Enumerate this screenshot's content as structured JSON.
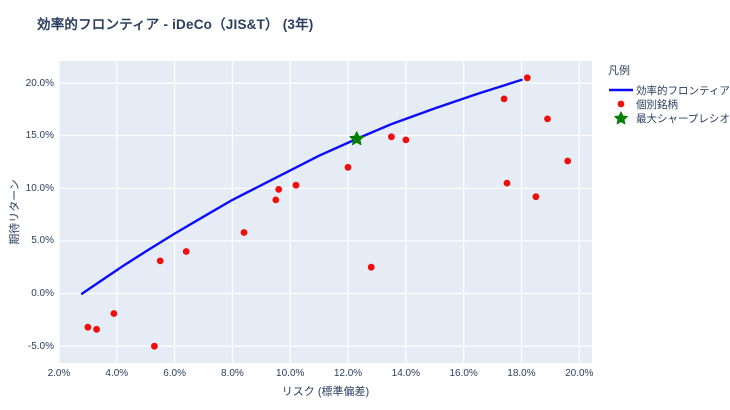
{
  "chart_data": {
    "type": "scatter",
    "title": "効率的フロンティア - iDeCo（JIS&T） (3年)",
    "xlabel": "リスク (標準偏差)",
    "ylabel": "期待リターン",
    "legend_title": "凡例",
    "xlim": [
      2.0,
      20.44
    ],
    "ylim": [
      -6.6,
      22.1
    ],
    "grid": true,
    "legend_position": "right",
    "x_ticks": {
      "values": [
        2,
        4,
        6,
        8,
        10,
        12,
        14,
        16,
        18,
        20
      ],
      "labels": [
        "2.0%",
        "4.0%",
        "6.0%",
        "8.0%",
        "10.0%",
        "12.0%",
        "14.0%",
        "16.0%",
        "18.0%",
        "20.0%"
      ]
    },
    "y_ticks": {
      "values": [
        -5,
        0,
        5,
        10,
        15,
        20
      ],
      "labels": [
        "-5.0%",
        "0.0%",
        "5.0%",
        "10.0%",
        "15.0%",
        "20.0%"
      ]
    },
    "series": [
      {
        "name": "効率的フロンティア",
        "kind": "line",
        "color": "#0b0bff",
        "points": [
          [
            2.8,
            0.0
          ],
          [
            3.5,
            1.3
          ],
          [
            4.2,
            2.6
          ],
          [
            5.0,
            4.0
          ],
          [
            6.0,
            5.7
          ],
          [
            7.0,
            7.3
          ],
          [
            8.0,
            8.9
          ],
          [
            9.0,
            10.3
          ],
          [
            10.0,
            11.7
          ],
          [
            11.0,
            13.1
          ],
          [
            12.3,
            14.7
          ],
          [
            13.5,
            16.1
          ],
          [
            15.0,
            17.6
          ],
          [
            16.5,
            19.0
          ],
          [
            18.0,
            20.3
          ]
        ]
      },
      {
        "name": "個別銘柄",
        "kind": "scatter",
        "color": "#f20d0d",
        "points": [
          [
            3.0,
            -3.2
          ],
          [
            3.3,
            -3.4
          ],
          [
            3.9,
            -1.9
          ],
          [
            5.3,
            -5.0
          ],
          [
            5.5,
            3.1
          ],
          [
            6.4,
            4.0
          ],
          [
            8.4,
            5.8
          ],
          [
            9.5,
            8.9
          ],
          [
            9.6,
            9.9
          ],
          [
            10.2,
            10.3
          ],
          [
            12.0,
            12.0
          ],
          [
            12.8,
            2.5
          ],
          [
            13.5,
            14.9
          ],
          [
            14.0,
            14.6
          ],
          [
            17.4,
            18.5
          ],
          [
            17.5,
            10.5
          ],
          [
            18.2,
            20.5
          ],
          [
            18.5,
            9.2
          ],
          [
            18.9,
            16.6
          ],
          [
            19.6,
            12.6
          ]
        ]
      },
      {
        "name": "最大シャープレシオ",
        "kind": "star",
        "color": "#028002",
        "points": [
          [
            12.3,
            14.7
          ]
        ]
      }
    ],
    "colors": {
      "plot_bg": "#e5ecf6",
      "grid": "#ffffff",
      "text": "#2a3f5f"
    }
  }
}
